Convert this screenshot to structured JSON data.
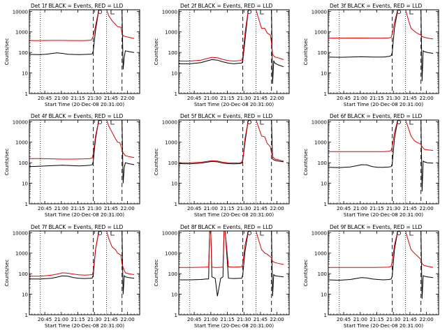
{
  "figure": {
    "panels": [
      {
        "title": "Det 1f BLACK = Events, RED = LLD"
      },
      {
        "title": "Det 2f BLACK = Events, RED = LLD"
      },
      {
        "title": "Det 3f BLACK = Events, RED = LLD"
      },
      {
        "title": "Det 4f BLACK = Events, RED = LLD"
      },
      {
        "title": "Det 5f BLACK = Events, RED = LLD"
      },
      {
        "title": "Det 6f BLACK = Events, RED = LLD"
      },
      {
        "title": "Det 7f BLACK = Events, RED = LLD"
      },
      {
        "title": "Det 8f BLACK = Events, RED = LLD"
      },
      {
        "title": "Det 9f BLACK = Events, RED = LLD"
      }
    ]
  },
  "chart_data": {
    "type": "line",
    "layout": "3x3 grid",
    "common": {
      "xlabel": "Start Time (20-Dec-08 20:31:00)",
      "ylabel": "Counts/sec",
      "y_scale": "log",
      "ylim": [
        1,
        12000
      ],
      "y_ticks": [
        1,
        10,
        100,
        1000,
        10000
      ],
      "y_tick_labels": [
        "1",
        "10",
        "100",
        "1000",
        "10000"
      ],
      "xlim_minutes": [
        0,
        100
      ],
      "x_tick_minutes": [
        14,
        29,
        44,
        59,
        74,
        89
      ],
      "x_tick_labels": [
        "20:45",
        "21:00",
        "21:15",
        "21:30",
        "21:45",
        "22:00"
      ],
      "dotted_vlines_minutes": [
        10,
        70
      ],
      "dashed_vlines_minutes": [
        58,
        84
      ],
      "legend": "BLACK = Events, RED = LLD",
      "colors": {
        "events": "#000000",
        "lld": "#e00000"
      }
    },
    "panels": [
      {
        "detector": "1f",
        "events": {
          "x": [
            0,
            10,
            15,
            20,
            25,
            30,
            35,
            40,
            45,
            50,
            55,
            57,
            58,
            60,
            63,
            66,
            70,
            75,
            80,
            84,
            85,
            86,
            87,
            90,
            95
          ],
          "y": [
            80,
            78,
            82,
            88,
            95,
            90,
            82,
            80,
            78,
            80,
            82,
            85,
            120,
            1200,
            12000,
            12000,
            12000,
            12000,
            12000,
            12000,
            15,
            60,
            120,
            110,
            100
          ]
        },
        "lld": {
          "x": [
            0,
            10,
            20,
            30,
            40,
            50,
            56,
            58,
            60,
            63,
            66,
            70,
            72,
            75,
            80,
            83,
            84,
            85,
            87,
            90,
            95
          ],
          "y": [
            380,
            380,
            385,
            385,
            380,
            380,
            400,
            600,
            2000,
            12000,
            12000,
            12000,
            6000,
            3500,
            1800,
            1700,
            900,
            650,
            600,
            550,
            480
          ]
        }
      },
      {
        "detector": "2f",
        "events": {
          "x": [
            0,
            10,
            20,
            25,
            30,
            35,
            40,
            45,
            50,
            55,
            57,
            58,
            60,
            63,
            66,
            70,
            75,
            80,
            84,
            85,
            86,
            87,
            90,
            95
          ],
          "y": [
            28,
            28,
            32,
            38,
            45,
            42,
            35,
            30,
            28,
            30,
            30,
            40,
            400,
            12000,
            12000,
            12000,
            12000,
            12000,
            12000,
            3,
            40,
            30,
            25,
            20
          ]
        },
        "lld": {
          "x": [
            0,
            10,
            20,
            25,
            30,
            35,
            40,
            45,
            50,
            55,
            57,
            58,
            60,
            63,
            66,
            70,
            72,
            75,
            78,
            80,
            83,
            84,
            85,
            87,
            90,
            95
          ],
          "y": [
            38,
            38,
            42,
            50,
            58,
            55,
            46,
            40,
            38,
            40,
            42,
            60,
            900,
            12000,
            12000,
            12000,
            5000,
            1500,
            1500,
            900,
            700,
            300,
            80,
            60,
            55,
            45
          ]
        }
      },
      {
        "detector": "3f",
        "events": {
          "x": [
            0,
            10,
            20,
            30,
            40,
            50,
            55,
            57,
            58,
            60,
            63,
            66,
            70,
            75,
            80,
            84,
            85,
            86,
            87,
            90,
            95
          ],
          "y": [
            60,
            58,
            60,
            62,
            60,
            60,
            65,
            70,
            100,
            1500,
            12000,
            12000,
            12000,
            12000,
            12000,
            12000,
            4,
            120,
            110,
            100,
            90
          ]
        },
        "lld": {
          "x": [
            0,
            10,
            20,
            30,
            40,
            50,
            55,
            57,
            58,
            60,
            63,
            66,
            70,
            72,
            75,
            80,
            84,
            85,
            87,
            90,
            95
          ],
          "y": [
            500,
            500,
            505,
            505,
            500,
            500,
            510,
            550,
            800,
            3000,
            12000,
            12000,
            12000,
            5000,
            1500,
            900,
            700,
            600,
            550,
            500,
            450
          ]
        }
      },
      {
        "detector": "4f",
        "events": {
          "x": [
            0,
            10,
            20,
            30,
            40,
            45,
            50,
            55,
            57,
            58,
            60,
            63,
            66,
            70,
            75,
            80,
            84,
            85,
            86,
            87,
            90,
            95
          ],
          "y": [
            65,
            68,
            72,
            75,
            72,
            70,
            72,
            75,
            80,
            120,
            1500,
            12000,
            12000,
            12000,
            12000,
            12000,
            12000,
            10,
            60,
            100,
            90,
            80
          ]
        },
        "lld": {
          "x": [
            0,
            10,
            20,
            30,
            40,
            50,
            55,
            57,
            58,
            60,
            63,
            66,
            70,
            72,
            75,
            78,
            80,
            82,
            84,
            85,
            87,
            90,
            95
          ],
          "y": [
            160,
            160,
            155,
            150,
            150,
            155,
            160,
            170,
            300,
            2000,
            12000,
            12000,
            12000,
            6000,
            3000,
            1500,
            1000,
            950,
            450,
            300,
            220,
            200,
            180
          ]
        }
      },
      {
        "detector": "5f",
        "events": {
          "x": [
            0,
            10,
            20,
            25,
            30,
            35,
            40,
            45,
            50,
            55,
            57,
            58,
            60,
            63,
            66,
            70,
            75,
            80,
            84,
            85,
            86,
            87,
            90,
            95
          ],
          "y": [
            90,
            88,
            95,
            105,
            115,
            110,
            95,
            90,
            88,
            90,
            95,
            130,
            1000,
            12000,
            12000,
            12000,
            12000,
            12000,
            12000,
            150,
            140,
            130,
            120,
            110
          ]
        },
        "lld": {
          "x": [
            0,
            10,
            20,
            25,
            30,
            35,
            40,
            45,
            50,
            55,
            57,
            58,
            60,
            63,
            66,
            70,
            72,
            75,
            78,
            80,
            83,
            84,
            85,
            87,
            90,
            95
          ],
          "y": [
            100,
            100,
            105,
            115,
            125,
            120,
            105,
            100,
            98,
            100,
            105,
            150,
            1500,
            12000,
            12000,
            12000,
            6000,
            2000,
            1800,
            900,
            600,
            300,
            200,
            150,
            140,
            120
          ]
        }
      },
      {
        "detector": "6f",
        "events": {
          "x": [
            0,
            10,
            20,
            25,
            30,
            35,
            40,
            45,
            50,
            55,
            57,
            58,
            60,
            63,
            66,
            70,
            75,
            80,
            84,
            85,
            86,
            87,
            90,
            95
          ],
          "y": [
            60,
            58,
            62,
            70,
            80,
            78,
            65,
            60,
            60,
            62,
            65,
            90,
            1500,
            12000,
            12000,
            12000,
            12000,
            12000,
            12000,
            4,
            120,
            110,
            100,
            95
          ]
        },
        "lld": {
          "x": [
            0,
            10,
            20,
            30,
            40,
            50,
            55,
            57,
            58,
            60,
            63,
            66,
            70,
            72,
            75,
            78,
            80,
            84,
            85,
            87,
            90,
            95
          ],
          "y": [
            350,
            350,
            350,
            350,
            350,
            350,
            360,
            400,
            600,
            3000,
            12000,
            12000,
            12000,
            6000,
            2000,
            1200,
            1000,
            800,
            600,
            450,
            420,
            400
          ]
        }
      },
      {
        "detector": "7f",
        "events": {
          "x": [
            0,
            10,
            20,
            25,
            30,
            35,
            40,
            45,
            50,
            55,
            57,
            58,
            60,
            63,
            66,
            70,
            75,
            80,
            84,
            85,
            86,
            87,
            90,
            95
          ],
          "y": [
            55,
            55,
            60,
            68,
            78,
            75,
            65,
            60,
            58,
            60,
            62,
            90,
            1500,
            12000,
            12000,
            12000,
            12000,
            12000,
            12000,
            10,
            80,
            70,
            65,
            60
          ]
        },
        "lld": {
          "x": [
            0,
            10,
            20,
            25,
            30,
            35,
            40,
            45,
            50,
            55,
            57,
            58,
            60,
            63,
            66,
            70,
            72,
            75,
            78,
            80,
            83,
            84,
            85,
            87,
            90,
            95
          ],
          "y": [
            75,
            75,
            85,
            95,
            110,
            105,
            95,
            88,
            85,
            88,
            90,
            130,
            1500,
            12000,
            12000,
            12000,
            5000,
            2000,
            1500,
            1000,
            800,
            300,
            200,
            110,
            100,
            90
          ]
        }
      },
      {
        "detector": "8f",
        "events": {
          "x": [
            0,
            10,
            20,
            25,
            27,
            28,
            29,
            30,
            33,
            35,
            38,
            40,
            41,
            42,
            45,
            50,
            55,
            57,
            58,
            60,
            63,
            66,
            70,
            75,
            80,
            84,
            85,
            86,
            87,
            90,
            95
          ],
          "y": [
            50,
            50,
            52,
            55,
            55,
            12000,
            12000,
            70,
            60,
            8,
            60,
            70,
            12000,
            12000,
            60,
            58,
            60,
            60,
            90,
            1200,
            12000,
            12000,
            12000,
            12000,
            12000,
            12000,
            8,
            90,
            80,
            75,
            70
          ]
        },
        "lld": {
          "x": [
            0,
            10,
            20,
            25,
            27,
            28,
            29,
            30,
            33,
            35,
            38,
            40,
            41,
            42,
            45,
            50,
            55,
            57,
            58,
            60,
            63,
            66,
            70,
            72,
            75,
            78,
            80,
            84,
            85,
            87,
            90,
            95
          ],
          "y": [
            200,
            200,
            205,
            210,
            210,
            12000,
            12000,
            210,
            200,
            200,
            205,
            210,
            12000,
            12000,
            215,
            210,
            215,
            220,
            300,
            2500,
            12000,
            12000,
            12000,
            5000,
            1500,
            1000,
            900,
            600,
            400,
            350,
            320,
            280
          ]
        }
      },
      {
        "detector": "9f",
        "events": {
          "x": [
            0,
            10,
            20,
            25,
            30,
            35,
            40,
            45,
            50,
            55,
            57,
            58,
            60,
            63,
            66,
            70,
            75,
            80,
            84,
            85,
            86,
            87,
            90,
            95
          ],
          "y": [
            50,
            48,
            52,
            58,
            65,
            62,
            55,
            52,
            50,
            52,
            55,
            80,
            1500,
            12000,
            12000,
            12000,
            12000,
            12000,
            12000,
            6,
            80,
            75,
            70,
            65
          ]
        },
        "lld": {
          "x": [
            0,
            10,
            20,
            30,
            40,
            50,
            55,
            57,
            58,
            60,
            63,
            66,
            70,
            72,
            75,
            78,
            80,
            84,
            85,
            87,
            90,
            95
          ],
          "y": [
            200,
            200,
            200,
            200,
            200,
            205,
            210,
            230,
            400,
            2500,
            12000,
            12000,
            12000,
            5000,
            1500,
            1000,
            800,
            500,
            300,
            250,
            230,
            200
          ]
        }
      }
    ]
  }
}
